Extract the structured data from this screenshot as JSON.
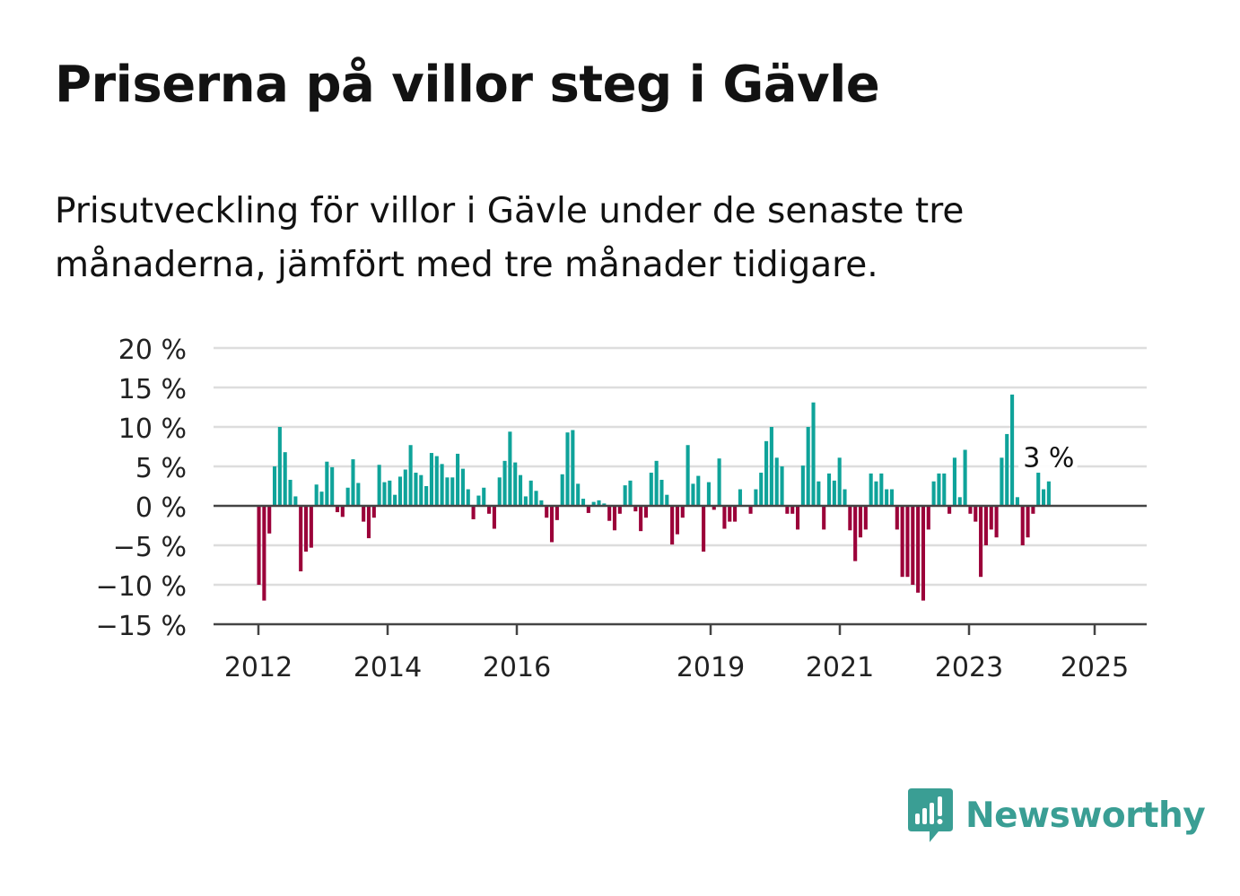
{
  "title": "Priserna på villor steg i Gävle",
  "subtitle": "Prisutveckling för villor i Gävle under de senaste tre månaderna, jämfört med tre månader tidigare.",
  "brand": {
    "name": "Newsworthy",
    "icon": "newsworthy-logo-icon",
    "color": "#3a9e94"
  },
  "chart_data": {
    "type": "bar",
    "title": "Priserna på villor steg i Gävle",
    "ylim": [
      -15,
      20
    ],
    "y_ticks": [
      20,
      15,
      10,
      5,
      0,
      -5,
      -10,
      -15
    ],
    "y_tick_labels": [
      "20 %",
      "15 %",
      "10 %",
      "5 %",
      "0 %",
      "−5 %",
      "−10 %",
      "−15 %"
    ],
    "x_ticks": [
      "2012",
      "2014",
      "2016",
      "2019",
      "2021",
      "2023",
      "2025"
    ],
    "grid": true,
    "colors": {
      "positive": "#0fa39a",
      "negative": "#9b0039",
      "grid": "#dddddd",
      "axis": "#444444"
    },
    "annotation": "3 %",
    "values": [
      -10,
      -12,
      -3.5,
      5,
      10,
      6.8,
      3.3,
      1.2,
      -8.3,
      -5.8,
      -5.3,
      2.7,
      1.8,
      5.6,
      4.9,
      -0.8,
      -1.4,
      2.3,
      5.9,
      2.9,
      -2,
      -4.1,
      -1.5,
      5.2,
      3,
      3.2,
      1.4,
      3.7,
      4.6,
      7.7,
      4.2,
      3.9,
      2.5,
      6.7,
      6.3,
      5.3,
      3.6,
      3.6,
      6.6,
      4.7,
      2.1,
      -1.7,
      1.3,
      2.3,
      -1,
      -2.9,
      3.6,
      5.7,
      9.4,
      5.5,
      3.9,
      1.2,
      3.2,
      1.9,
      0.7,
      -1.5,
      -4.6,
      -1.8,
      4,
      9.3,
      9.6,
      2.8,
      0.9,
      -0.9,
      0.5,
      0.7,
      0.3,
      -1.9,
      -3.1,
      -1,
      2.6,
      3.2,
      -0.7,
      -3.2,
      -1.5,
      4.2,
      5.7,
      3.3,
      1.4,
      -4.9,
      -3.6,
      -1.5,
      7.7,
      2.8,
      3.8,
      -5.8,
      3,
      -0.5,
      6,
      -2.9,
      -2,
      -2,
      2.1,
      0,
      -1,
      2.1,
      4.2,
      8.2,
      10,
      6.1,
      5,
      -1,
      -1,
      -3,
      5.1,
      10,
      13.1,
      3.1,
      -3,
      4.1,
      3.2,
      6.1,
      2.1,
      -3.1,
      -7,
      -4,
      -3,
      4.1,
      3.1,
      4.1,
      2.1,
      2.1,
      -3,
      -9,
      -9,
      -10,
      -11,
      -12,
      -3,
      3.1,
      4.1,
      4.1,
      -1,
      6.1,
      1.1,
      7.1,
      -1,
      -2,
      -9,
      -5,
      -3,
      -4,
      6.1,
      9.1,
      14.1,
      1.1,
      -5,
      -4,
      -1,
      4.2,
      2.1,
      3.1
    ]
  }
}
